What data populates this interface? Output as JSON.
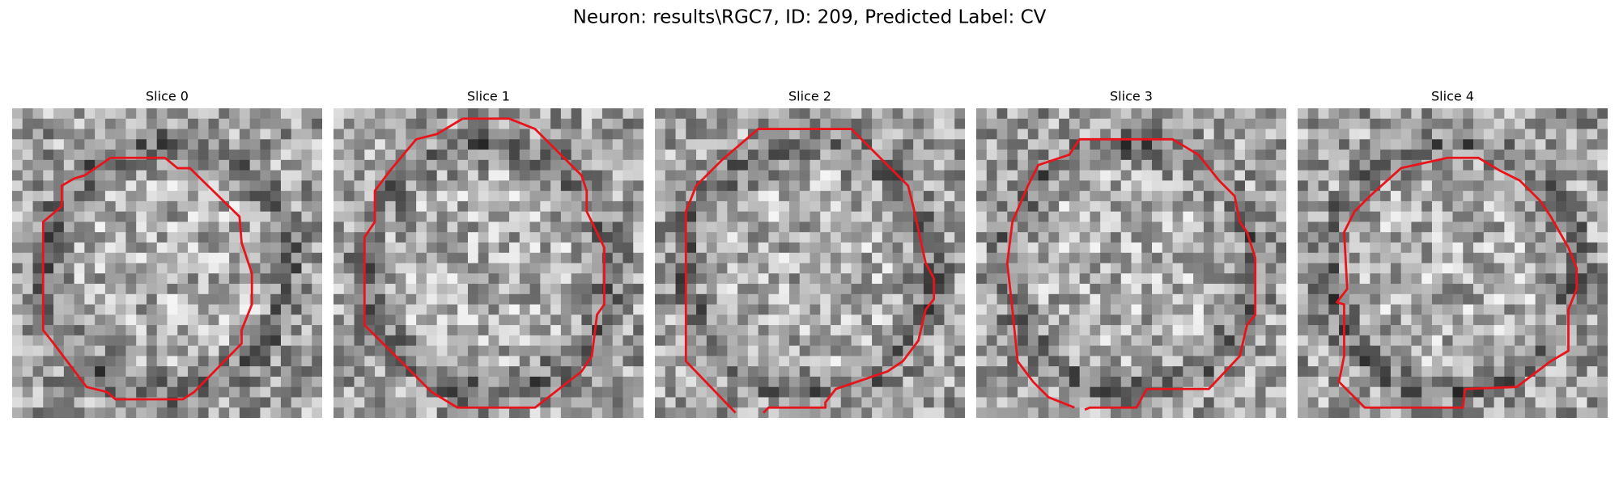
{
  "title": "Neuron: results\\RGC7, ID: 209, Predicted Label: CV",
  "panels": [
    {
      "title": "Slice 0"
    },
    {
      "title": "Slice 1"
    },
    {
      "title": "Slice 2"
    },
    {
      "title": "Slice 3"
    },
    {
      "title": "Slice 4"
    }
  ]
}
